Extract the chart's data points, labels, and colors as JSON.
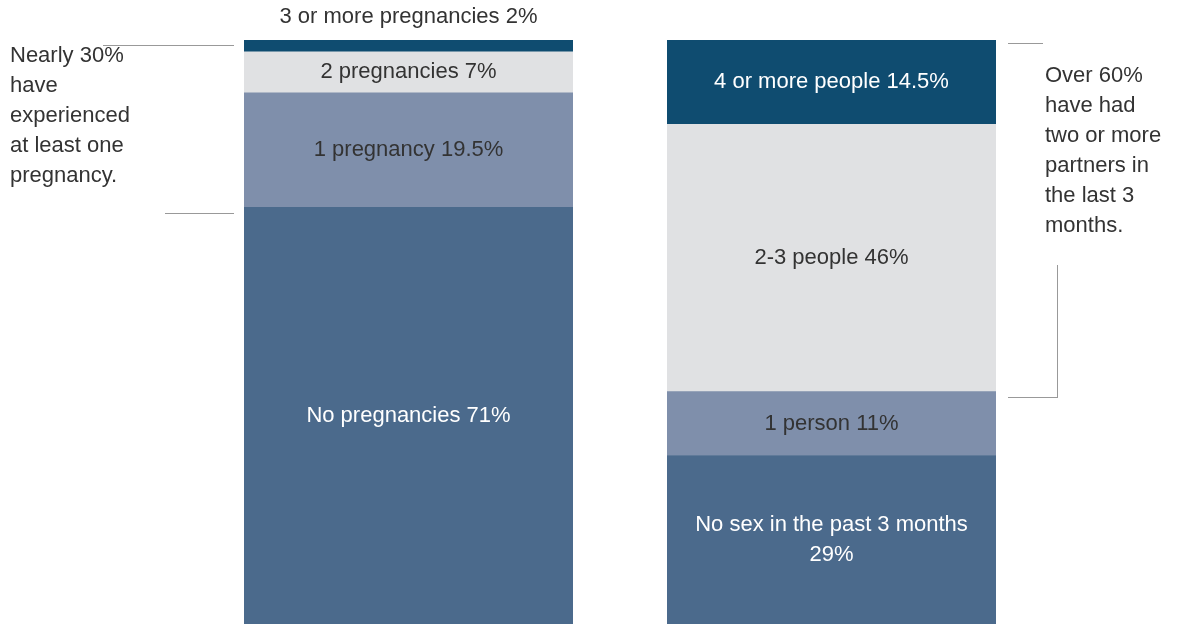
{
  "chart_data": [
    {
      "type": "bar",
      "stacked": true,
      "categories": [
        null
      ],
      "tick_labels": false,
      "series": [
        {
          "color": "#4b6a8c",
          "values": [
            71
          ],
          "value_labels": [
            "No pregnancies 71%"
          ]
        },
        {
          "color": "#7f8fab",
          "values": [
            19.5
          ],
          "value_labels": [
            "1 pregnancy 19.5%"
          ]
        },
        {
          "color": "#e0e1e3",
          "values": [
            7
          ],
          "value_labels": [
            "2 pregnancies 7%"
          ]
        },
        {
          "color": "#0f4c70",
          "values": [
            2
          ],
          "value_labels": [
            "3 or more pregnancies 2%"
          ]
        }
      ],
      "annotations": [
        "Nearly 30% have experienced at least one pregnancy."
      ]
    },
    {
      "type": "bar",
      "stacked": true,
      "categories": [
        null
      ],
      "tick_labels": false,
      "series": [
        {
          "color": "#4b6a8c",
          "values": [
            29
          ],
          "value_labels": [
            "No sex in the past 3 months 29%"
          ]
        },
        {
          "color": "#7f8fab",
          "values": [
            11
          ],
          "value_labels": [
            "1 person 11%"
          ]
        },
        {
          "color": "#e0e1e3",
          "values": [
            46
          ],
          "value_labels": [
            "2-3 people 46%"
          ]
        },
        {
          "color": "#0f4c70",
          "values": [
            14.5
          ],
          "value_labels": [
            "4 or more people 14.5%"
          ]
        }
      ],
      "annotations": [
        "Over 60% have had two or more partners in the last 3 months."
      ]
    }
  ]
}
